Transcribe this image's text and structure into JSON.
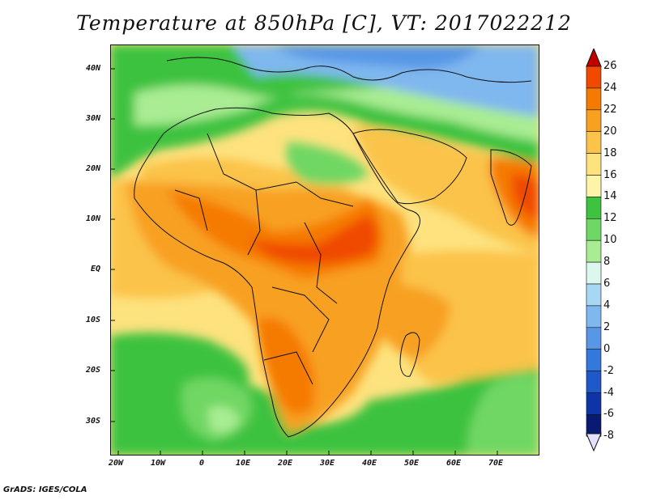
{
  "title": "Temperature at 850hPa [C], VT: 2017022212",
  "credit": "GrADS: IGES/COLA",
  "lat_labels": [
    "40N",
    "30N",
    "20N",
    "10N",
    "EQ",
    "10S",
    "20S",
    "30S"
  ],
  "lon_labels": [
    "20W",
    "10W",
    "0",
    "10E",
    "20E",
    "30E",
    "40E",
    "50E",
    "60E",
    "70E"
  ],
  "colorbar": {
    "labels": [
      "26",
      "24",
      "22",
      "20",
      "18",
      "16",
      "14",
      "12",
      "10",
      "8",
      "6",
      "4",
      "2",
      "0",
      "-2",
      "-4",
      "-6",
      "-8"
    ],
    "colors": [
      "#d81f00",
      "#f04a00",
      "#f57a00",
      "#f8a020",
      "#fbc34a",
      "#fde27e",
      "#fdf4a8",
      "#3ec23f",
      "#6fd764",
      "#a9ec93",
      "#dcf7ee",
      "#a8d6f5",
      "#7fb7ef",
      "#5797e6",
      "#3578dc",
      "#1f58c8",
      "#0d35a8",
      "#081a72"
    ],
    "top_arrow_color": "#c20000",
    "bottom_arrow_color": "#e6e0ff"
  }
}
